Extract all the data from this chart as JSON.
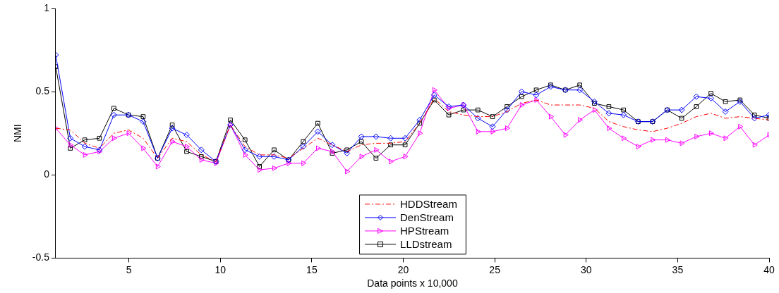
{
  "chart_data": {
    "type": "line",
    "xlabel": "Data points x 10,000",
    "ylabel": "NMI",
    "x": [
      1.0,
      1.8,
      2.59,
      3.39,
      4.18,
      4.98,
      5.78,
      6.57,
      7.37,
      8.16,
      8.96,
      9.76,
      10.55,
      11.35,
      12.14,
      12.94,
      13.73,
      14.53,
      15.33,
      16.12,
      16.92,
      17.71,
      18.51,
      19.31,
      20.1,
      20.9,
      21.69,
      22.49,
      23.29,
      24.08,
      24.88,
      25.67,
      26.47,
      27.27,
      28.06,
      28.86,
      29.65,
      30.45,
      31.24,
      32.04,
      32.84,
      33.63,
      34.43,
      35.22,
      36.02,
      36.82,
      37.61,
      38.41,
      39.2,
      40.0
    ],
    "series": [
      {
        "name": "HDDStream",
        "color": "#ff0000",
        "marker": "none",
        "line_style": "dashed",
        "values": [
          0.28,
          0.27,
          0.19,
          0.16,
          0.25,
          0.27,
          0.22,
          0.1,
          0.22,
          0.2,
          0.12,
          0.08,
          0.3,
          0.17,
          0.12,
          0.12,
          0.1,
          0.16,
          0.22,
          0.18,
          0.14,
          0.18,
          0.19,
          0.19,
          0.2,
          0.31,
          0.46,
          0.38,
          0.36,
          0.35,
          0.35,
          0.38,
          0.43,
          0.45,
          0.42,
          0.42,
          0.42,
          0.4,
          0.32,
          0.29,
          0.27,
          0.26,
          0.28,
          0.31,
          0.35,
          0.37,
          0.34,
          0.35,
          0.34,
          0.33
        ]
      },
      {
        "name": "DenStream",
        "color": "#0000ff",
        "marker": "diamond",
        "line_style": "solid",
        "values": [
          0.72,
          0.22,
          0.17,
          0.15,
          0.36,
          0.36,
          0.32,
          0.1,
          0.28,
          0.24,
          0.15,
          0.08,
          0.3,
          0.15,
          0.11,
          0.11,
          0.09,
          0.17,
          0.26,
          0.18,
          0.13,
          0.23,
          0.23,
          0.22,
          0.22,
          0.33,
          0.48,
          0.41,
          0.42,
          0.34,
          0.29,
          0.39,
          0.5,
          0.48,
          0.53,
          0.51,
          0.51,
          0.44,
          0.37,
          0.36,
          0.32,
          0.32,
          0.39,
          0.39,
          0.47,
          0.46,
          0.38,
          0.44,
          0.34,
          0.36
        ]
      },
      {
        "name": "HPStream",
        "color": "#ff00ff",
        "marker": "triangle",
        "line_style": "solid",
        "values": [
          0.28,
          0.18,
          0.12,
          0.14,
          0.22,
          0.25,
          0.16,
          0.05,
          0.2,
          0.17,
          0.09,
          0.07,
          0.3,
          0.12,
          0.03,
          0.04,
          0.07,
          0.07,
          0.16,
          0.14,
          0.02,
          0.11,
          0.15,
          0.08,
          0.11,
          0.25,
          0.51,
          0.4,
          0.42,
          0.26,
          0.26,
          0.28,
          0.42,
          0.45,
          0.35,
          0.24,
          0.33,
          0.39,
          0.28,
          0.22,
          0.17,
          0.21,
          0.21,
          0.19,
          0.23,
          0.25,
          0.22,
          0.29,
          0.18,
          0.24
        ]
      },
      {
        "name": "LLDstream",
        "color": "#000000",
        "marker": "square",
        "line_style": "solid",
        "values": [
          0.65,
          0.16,
          0.21,
          0.22,
          0.4,
          0.36,
          0.35,
          0.1,
          0.3,
          0.14,
          0.11,
          0.08,
          0.33,
          0.21,
          0.05,
          0.15,
          0.09,
          0.2,
          0.31,
          0.13,
          0.15,
          0.2,
          0.1,
          0.18,
          0.18,
          0.31,
          0.45,
          0.36,
          0.39,
          0.39,
          0.35,
          0.41,
          0.47,
          0.51,
          0.54,
          0.51,
          0.54,
          0.43,
          0.41,
          0.39,
          0.32,
          0.32,
          0.39,
          0.34,
          0.41,
          0.49,
          0.44,
          0.45,
          0.36,
          0.34
        ]
      }
    ],
    "xlim": [
      1,
      40
    ],
    "xticks": [
      5,
      10,
      15,
      20,
      25,
      30,
      35,
      40
    ],
    "ylim": [
      -0.5,
      1
    ],
    "yticks": [
      -0.5,
      0,
      0.5,
      1
    ],
    "grid": false,
    "legend": "bottom"
  }
}
